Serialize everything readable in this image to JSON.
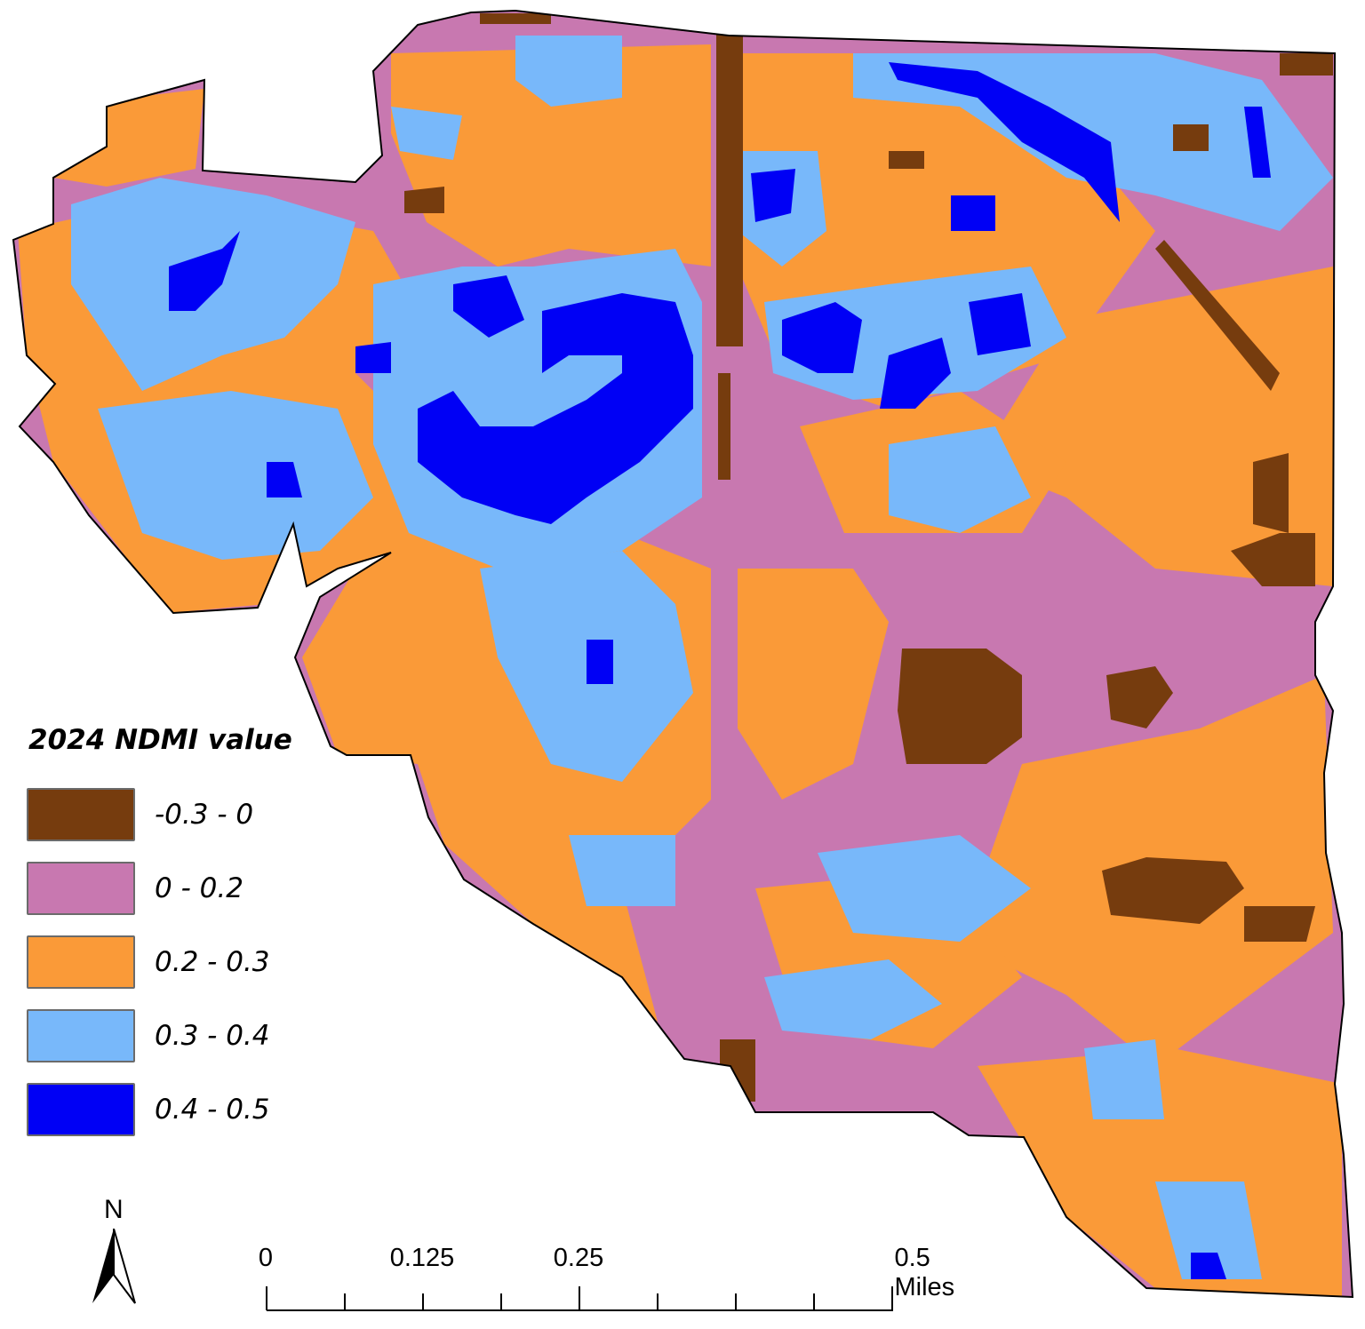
{
  "legend": {
    "title": "2024 NDMI value",
    "items": [
      {
        "label": "-0.3 - 0",
        "color": "#763c0e"
      },
      {
        "label": "0 - 0.2",
        "color": "#c878b0"
      },
      {
        "label": "0.2 - 0.3",
        "color": "#fa9a38"
      },
      {
        "label": "0.3 - 0.4",
        "color": "#78b8fa"
      },
      {
        "label": "0.4 - 0.5",
        "color": "#0000f5"
      }
    ]
  },
  "north_arrow": {
    "label": "N",
    "icon": "north-arrow-icon"
  },
  "scale_bar": {
    "labels": [
      "0",
      "0.125",
      "0.25",
      "0.5 Miles"
    ],
    "unit": "Miles"
  }
}
